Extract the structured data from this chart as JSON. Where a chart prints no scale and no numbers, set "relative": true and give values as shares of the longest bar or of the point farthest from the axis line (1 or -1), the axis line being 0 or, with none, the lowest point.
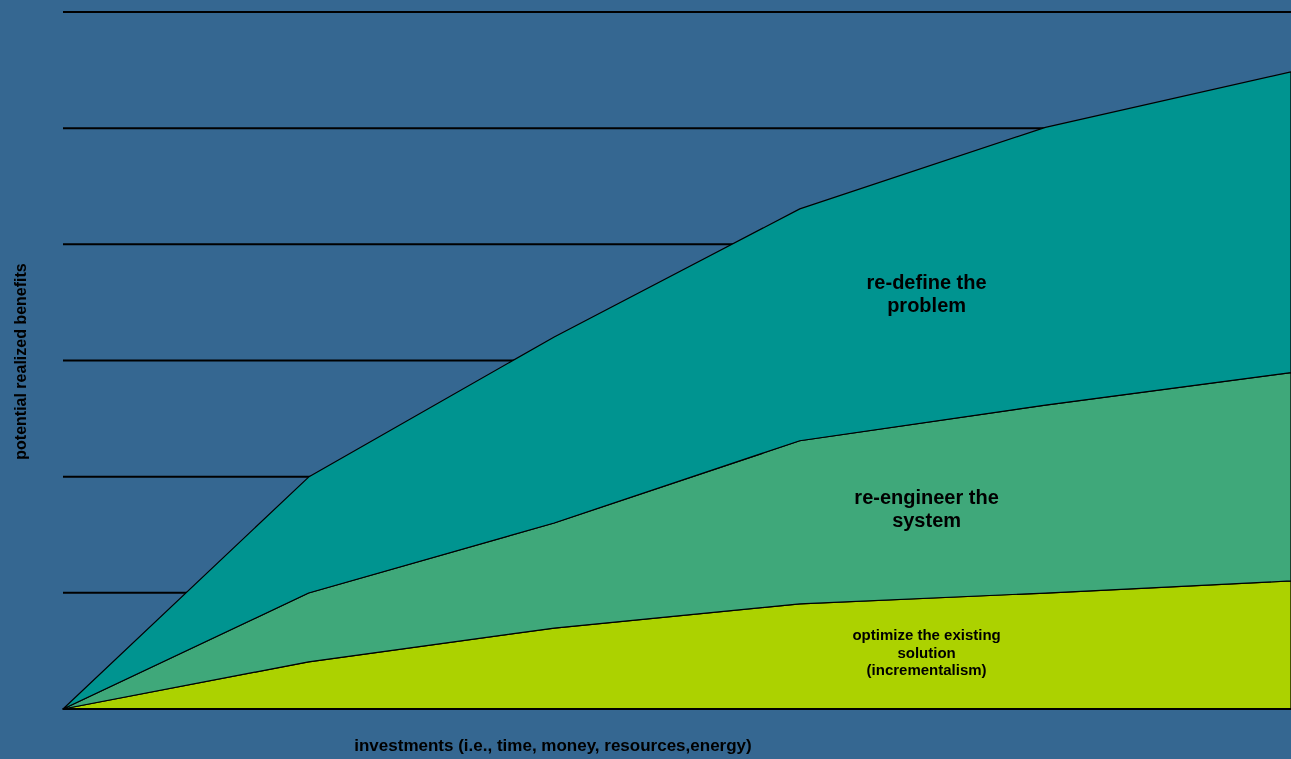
{
  "chart_data": {
    "type": "area",
    "stacked": true,
    "relative": true,
    "grid": "y",
    "xlabel": "investments (i.e., time, money, resources,energy)",
    "ylabel": "potential realized benefits",
    "categories": [
      null,
      null,
      null,
      null,
      null,
      null
    ],
    "series": [
      {
        "name": "optimize the existing solution (incrementalism)",
        "color": "#acd200",
        "values": [
          0,
          0.074,
          0.127,
          0.165,
          0.182,
          0.201
        ]
      },
      {
        "name": "re-engineer the system",
        "color": "#3fa87a",
        "values": [
          0,
          0.108,
          0.165,
          0.256,
          0.295,
          0.327
        ]
      },
      {
        "name": "re-define the problem",
        "color": "#009490",
        "values": [
          0,
          0.182,
          0.292,
          0.364,
          0.436,
          0.472
        ]
      }
    ]
  }
}
